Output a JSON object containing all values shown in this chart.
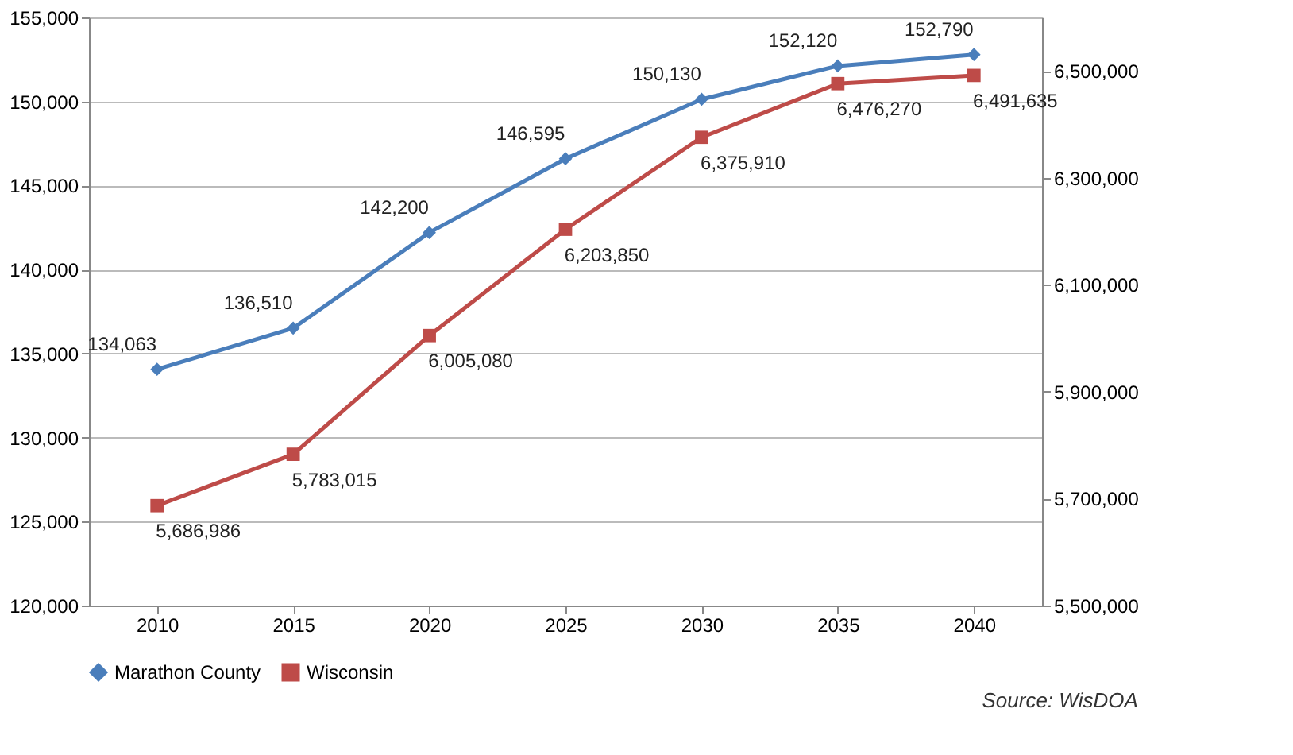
{
  "chart_data": {
    "type": "line",
    "categories": [
      "2010",
      "2015",
      "2020",
      "2025",
      "2030",
      "2035",
      "2040"
    ],
    "series": [
      {
        "name": "Marathon County",
        "color": "#4a7ebb",
        "marker": "diamond",
        "values": [
          134063,
          136510,
          142200,
          146595,
          150130,
          152120,
          152790
        ],
        "value_labels": [
          "134,063",
          "136,510",
          "142,200",
          "146,595",
          "150,130",
          "152,120",
          "152,790"
        ]
      },
      {
        "name": "Wisconsin",
        "color": "#be4b48",
        "marker": "square",
        "axis": "y2",
        "values": [
          5686986,
          5783015,
          6005080,
          6203850,
          6375910,
          6476270,
          6491635
        ],
        "value_labels": [
          "5,686,986",
          "5,783,015",
          "6,005,080",
          "6,203,850",
          "6,375,910",
          "6,476,270",
          "6,491,635"
        ]
      }
    ],
    "ylim": [
      120000,
      155000
    ],
    "yticks": [
      {
        "value": 120000,
        "label": "120,000"
      },
      {
        "value": 125000,
        "label": "125,000"
      },
      {
        "value": 130000,
        "label": "130,000"
      },
      {
        "value": 135000,
        "label": "135,000"
      },
      {
        "value": 140000,
        "label": "140,000"
      },
      {
        "value": 145000,
        "label": "145,000"
      },
      {
        "value": 150000,
        "label": "150,000"
      },
      {
        "value": 155000,
        "label": "155,000"
      }
    ],
    "y2lim": [
      5500000,
      6600000
    ],
    "y2ticks": [
      {
        "value": 5500000,
        "label": "5,500,000"
      },
      {
        "value": 5700000,
        "label": "5,700,000"
      },
      {
        "value": 5900000,
        "label": "5,900,000"
      },
      {
        "value": 6100000,
        "label": "6,100,000"
      },
      {
        "value": 6300000,
        "label": "6,300,000"
      },
      {
        "value": 6500000,
        "label": "6,500,000"
      }
    ],
    "grid": "y",
    "legend": "bottom",
    "line_style": "solid",
    "annotations": [
      "Source: WisDOA"
    ]
  }
}
